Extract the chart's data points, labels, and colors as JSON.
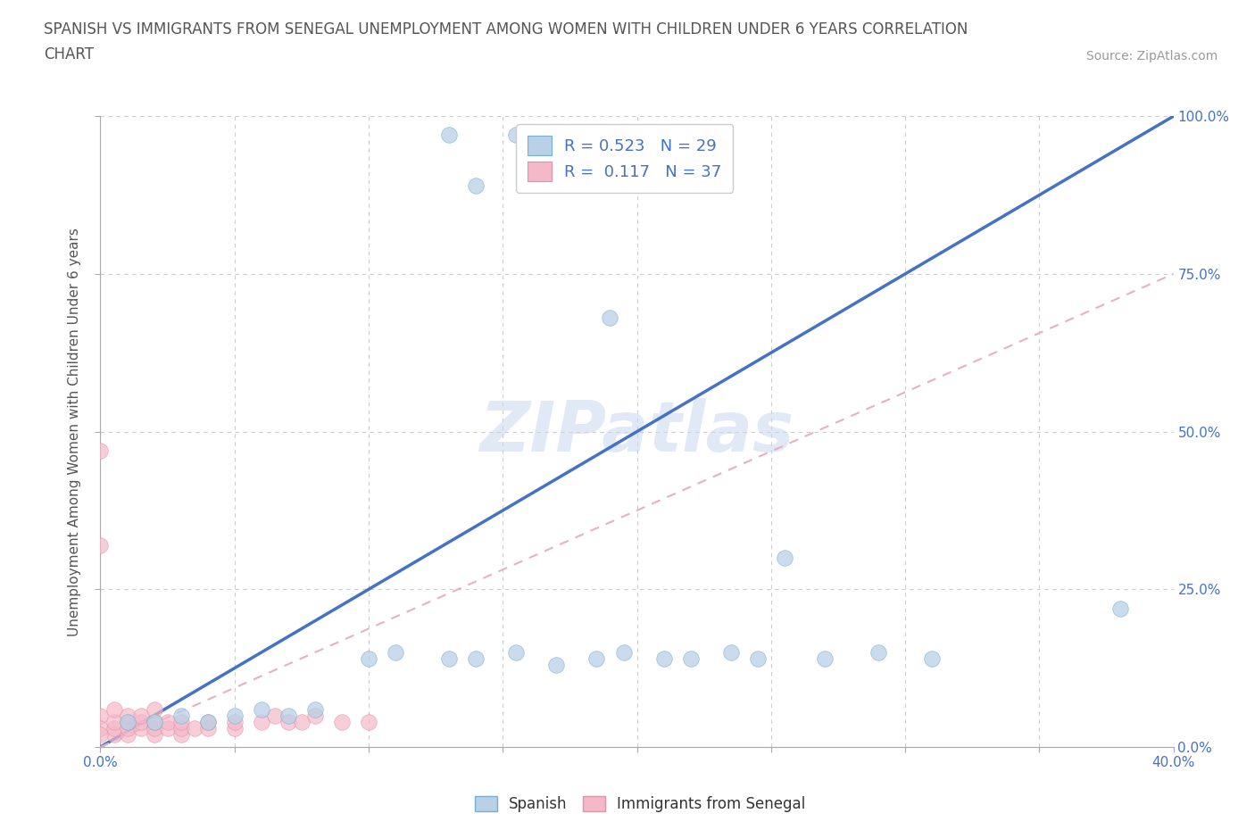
{
  "title_line1": "SPANISH VS IMMIGRANTS FROM SENEGAL UNEMPLOYMENT AMONG WOMEN WITH CHILDREN UNDER 6 YEARS CORRELATION",
  "title_line2": "CHART",
  "source": "Source: ZipAtlas.com",
  "ylabel": "Unemployment Among Women with Children Under 6 years",
  "xmin": 0.0,
  "xmax": 0.4,
  "ymin": 0.0,
  "ymax": 1.0,
  "x_ticks": [
    0.0,
    0.05,
    0.1,
    0.15,
    0.2,
    0.25,
    0.3,
    0.35,
    0.4
  ],
  "y_ticks": [
    0.0,
    0.25,
    0.5,
    0.75,
    1.0
  ],
  "y_tick_labels": [
    "0.0%",
    "25.0%",
    "50.0%",
    "75.0%",
    "100.0%"
  ],
  "blue_R": 0.523,
  "blue_N": 29,
  "pink_R": 0.117,
  "pink_N": 37,
  "blue_color": "#b8d0e8",
  "pink_color": "#f5b8c8",
  "blue_edge_color": "#7aaed0",
  "pink_edge_color": "#e090a8",
  "blue_line_color": "#4472c4",
  "pink_line_color": "#e8b0c0",
  "watermark": "ZIPatlas",
  "blue_scatter_x": [
    0.13,
    0.155,
    0.14,
    0.19,
    0.38,
    0.01,
    0.02,
    0.03,
    0.04,
    0.05,
    0.06,
    0.07,
    0.08,
    0.1,
    0.11,
    0.13,
    0.14,
    0.155,
    0.17,
    0.185,
    0.195,
    0.21,
    0.22,
    0.235,
    0.255,
    0.27,
    0.29,
    0.31,
    0.245
  ],
  "blue_scatter_y": [
    0.97,
    0.97,
    0.89,
    0.68,
    0.22,
    0.04,
    0.04,
    0.05,
    0.04,
    0.05,
    0.06,
    0.05,
    0.06,
    0.14,
    0.15,
    0.14,
    0.14,
    0.15,
    0.13,
    0.14,
    0.15,
    0.14,
    0.14,
    0.15,
    0.3,
    0.14,
    0.15,
    0.14,
    0.14
  ],
  "pink_scatter_x": [
    0.0,
    0.0,
    0.0,
    0.0,
    0.005,
    0.005,
    0.005,
    0.005,
    0.01,
    0.01,
    0.01,
    0.01,
    0.015,
    0.015,
    0.015,
    0.02,
    0.02,
    0.02,
    0.02,
    0.025,
    0.025,
    0.03,
    0.03,
    0.03,
    0.035,
    0.04,
    0.04,
    0.05,
    0.05,
    0.06,
    0.065,
    0.07,
    0.075,
    0.08,
    0.09,
    0.1,
    0.0
  ],
  "pink_scatter_y": [
    0.47,
    0.32,
    0.05,
    0.03,
    0.02,
    0.03,
    0.04,
    0.06,
    0.02,
    0.03,
    0.04,
    0.05,
    0.03,
    0.04,
    0.05,
    0.02,
    0.03,
    0.04,
    0.06,
    0.03,
    0.04,
    0.02,
    0.03,
    0.04,
    0.03,
    0.03,
    0.04,
    0.03,
    0.04,
    0.04,
    0.05,
    0.04,
    0.04,
    0.05,
    0.04,
    0.04,
    0.02
  ],
  "blue_line_x": [
    0.0,
    0.4
  ],
  "blue_line_y": [
    0.0,
    1.0
  ],
  "pink_line_x": [
    0.0,
    0.4
  ],
  "pink_line_y": [
    0.0,
    0.75
  ],
  "background_color": "#ffffff",
  "grid_color": "#cccccc"
}
